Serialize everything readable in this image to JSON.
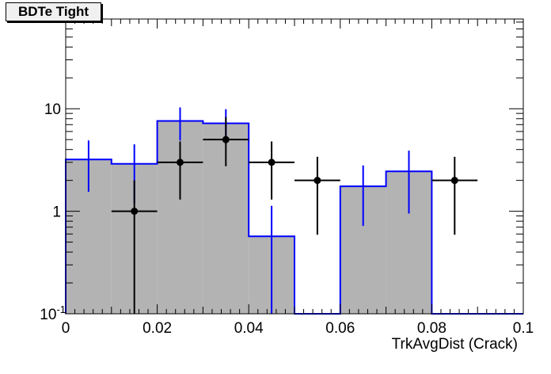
{
  "chart_data": {
    "type": "bar",
    "title": "BDTe Tight",
    "xlabel": "TrkAvgDist (Crack)",
    "ylabel": "",
    "xlim": [
      0,
      0.1
    ],
    "ylim": [
      0.1,
      75
    ],
    "log_y": true,
    "grid": false,
    "x_tick_labels": [
      "0",
      "0.02",
      "0.04",
      "0.06",
      "0.08",
      "0.1"
    ],
    "y_tick_labels": [
      "10^-1",
      "1",
      "10"
    ],
    "bin_edges": [
      0,
      0.01,
      0.02,
      0.03,
      0.04,
      0.05,
      0.06,
      0.07,
      0.08,
      0.09,
      0.1
    ],
    "histogram": {
      "values": [
        3.2,
        2.9,
        7.6,
        7.2,
        0.57,
        0,
        1.75,
        2.45,
        0,
        0
      ],
      "err_low": [
        1.55,
        1.2,
        4.9,
        4.5,
        0.1,
        null,
        0.72,
        0.95,
        null,
        null
      ],
      "err_high": [
        4.9,
        4.5,
        10.3,
        9.9,
        1.13,
        null,
        2.8,
        3.9,
        null,
        null
      ],
      "fill_color": "#b3b3b3",
      "line_color": "#0000ff"
    },
    "data_points": {
      "x": [
        0.015,
        0.025,
        0.035,
        0.045,
        0.055,
        0.085
      ],
      "y": [
        1,
        3,
        5,
        3,
        2,
        2
      ],
      "err_low": [
        0.1,
        1.3,
        2.75,
        1.3,
        0.59,
        0.59
      ],
      "err_high": [
        2.0,
        4.8,
        8.3,
        4.8,
        3.4,
        3.4
      ],
      "x_half_width": 0.005,
      "color": "#000000"
    }
  }
}
